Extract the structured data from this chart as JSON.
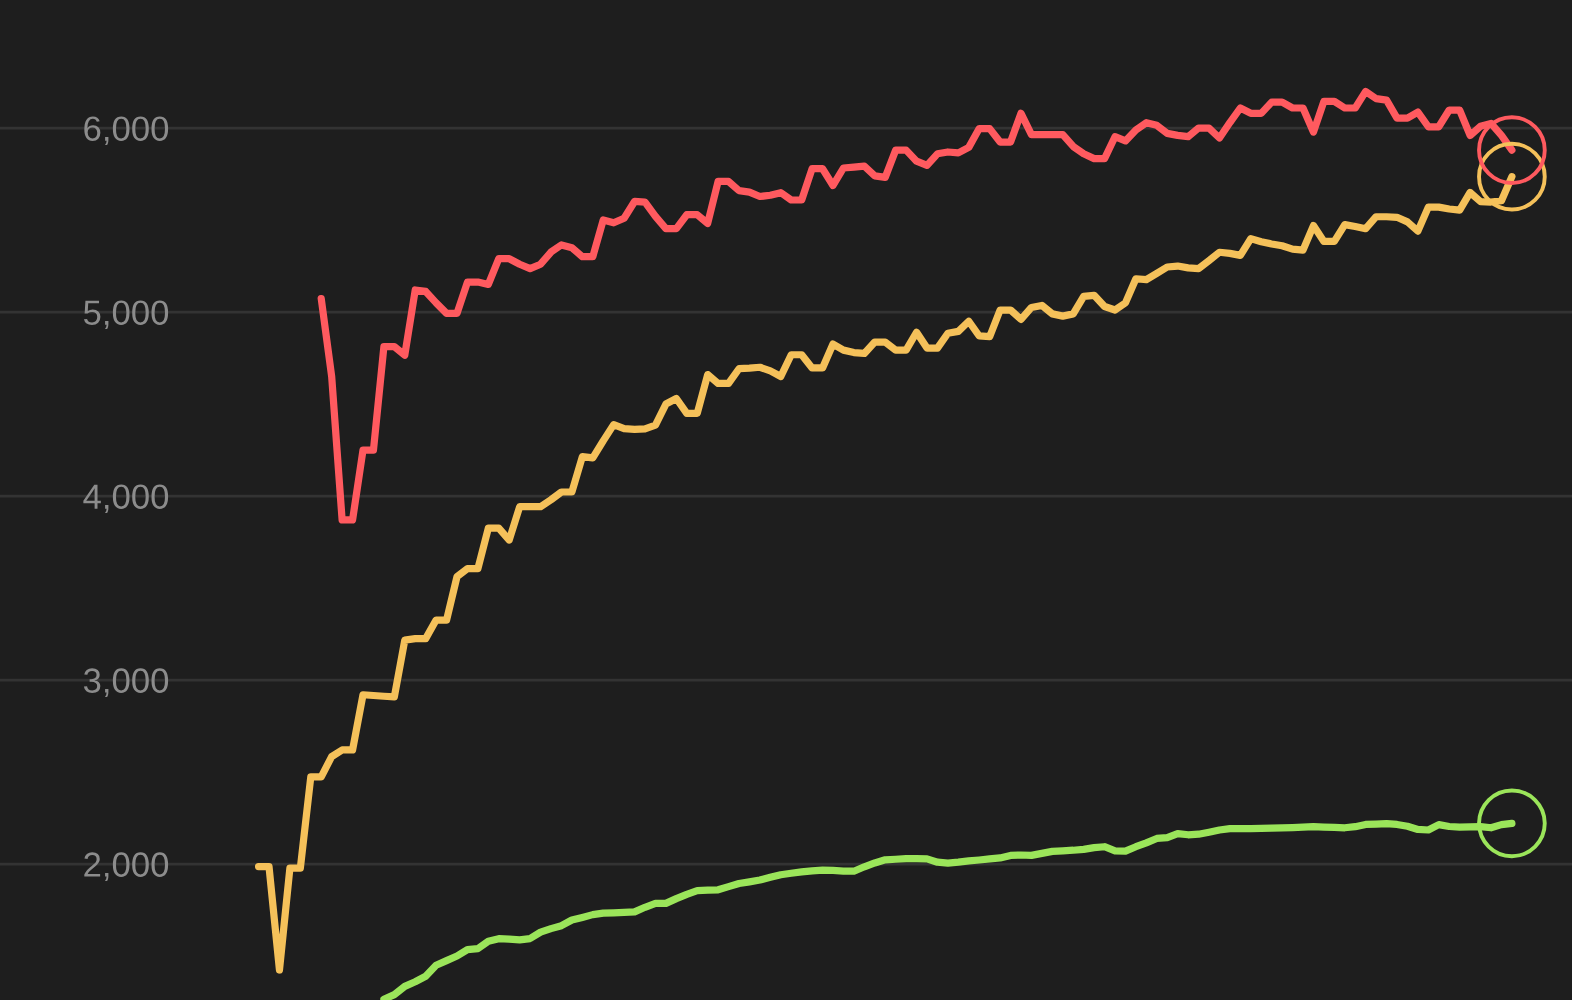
{
  "chart_data": {
    "type": "line",
    "categories": [
      null,
      null,
      null,
      null,
      null,
      null,
      null,
      null,
      null,
      null,
      null,
      null,
      null,
      null,
      null,
      null,
      null,
      null,
      null,
      null,
      null,
      null,
      null,
      null,
      null,
      null,
      null,
      null,
      null,
      null,
      null,
      null,
      null,
      null,
      null,
      null,
      null,
      null,
      null,
      null,
      null,
      null,
      null,
      null,
      null,
      null,
      null,
      null,
      null,
      null,
      null,
      null,
      null,
      null,
      null,
      null,
      null,
      null,
      null,
      null,
      null,
      null,
      null,
      null,
      null,
      null,
      null,
      null,
      null,
      null,
      null,
      null,
      null,
      null,
      null,
      null,
      null,
      null,
      null,
      null,
      null,
      null,
      null,
      null,
      null,
      null,
      null,
      null,
      null,
      null,
      null,
      null,
      null,
      null,
      null,
      null,
      null,
      null,
      null,
      null,
      null,
      null,
      null,
      null,
      null,
      null,
      null,
      null,
      null,
      null,
      null,
      null,
      null,
      null,
      null,
      null,
      null,
      null,
      null,
      null,
      null
    ],
    "ylim": [
      1261,
      6696
    ],
    "yticks": [
      {
        "value": 2000,
        "label": "2,000"
      },
      {
        "value": 3000,
        "label": "3,000"
      },
      {
        "value": 4000,
        "label": "4,000"
      },
      {
        "value": 5000,
        "label": "5,000"
      },
      {
        "value": 6000,
        "label": "6,000"
      }
    ],
    "tick_labels": "y",
    "grid": "y",
    "legend": false,
    "marker": "none",
    "line_style": "solid",
    "series": [
      {
        "color": "#f5c15a",
        "values": [
          1986,
          1986,
          1424,
          1978,
          1978,
          2474,
          2474,
          2584,
          2620,
          2620,
          2920,
          2916,
          2912,
          2908,
          3217,
          3225,
          3225,
          3326,
          3326,
          3562,
          3605,
          3605,
          3826,
          3826,
          3761,
          3942,
          3942,
          3942,
          3980,
          4022,
          4022,
          4214,
          4207,
          4300,
          4388,
          4366,
          4362,
          4365,
          4385,
          4500,
          4530,
          4449,
          4449,
          4660,
          4612,
          4612,
          4692,
          4695,
          4700,
          4680,
          4650,
          4768,
          4768,
          4696,
          4696,
          4826,
          4793,
          4780,
          4775,
          4837,
          4837,
          4793,
          4793,
          4890,
          4804,
          4804,
          4885,
          4895,
          4950,
          4870,
          4866,
          5011,
          5011,
          4960,
          5025,
          5036,
          4990,
          4978,
          4990,
          5085,
          5091,
          5030,
          5011,
          5050,
          5181,
          5176,
          5210,
          5245,
          5250,
          5240,
          5236,
          5280,
          5325,
          5319,
          5308,
          5399,
          5382,
          5370,
          5360,
          5342,
          5337,
          5470,
          5384,
          5384,
          5475,
          5465,
          5453,
          5518,
          5518,
          5515,
          5490,
          5440,
          5570,
          5570,
          5560,
          5554,
          5650,
          5600,
          5598,
          5605,
          5736
        ]
      },
      {
        "color": "#ff5a5f",
        "values": [
          null,
          null,
          null,
          null,
          null,
          null,
          5073,
          4650,
          3870,
          3870,
          4250,
          4250,
          4812,
          4812,
          4766,
          5120,
          5112,
          5050,
          4993,
          4993,
          5163,
          5163,
          5150,
          5290,
          5290,
          5260,
          5236,
          5260,
          5326,
          5365,
          5350,
          5301,
          5301,
          5500,
          5485,
          5510,
          5601,
          5598,
          5520,
          5453,
          5453,
          5529,
          5529,
          5482,
          5710,
          5710,
          5660,
          5652,
          5628,
          5635,
          5649,
          5609,
          5609,
          5779,
          5779,
          5688,
          5783,
          5788,
          5793,
          5740,
          5732,
          5880,
          5880,
          5820,
          5797,
          5860,
          5870,
          5865,
          5895,
          5997,
          5997,
          5924,
          5924,
          6080,
          5964,
          5964,
          5964,
          5964,
          5900,
          5860,
          5834,
          5834,
          5953,
          5930,
          5990,
          6029,
          6015,
          5971,
          5960,
          5953,
          6000,
          6000,
          5946,
          6030,
          6109,
          6080,
          6080,
          6141,
          6141,
          6109,
          6109,
          5978,
          6145,
          6145,
          6109,
          6109,
          6199,
          6160,
          6152,
          6054,
          6054,
          6087,
          6007,
          6007,
          6098,
          6098,
          5960,
          6010,
          6025,
          5960,
          5880
        ]
      },
      {
        "color": "#9be55a",
        "values": [
          null,
          null,
          null,
          null,
          null,
          null,
          null,
          null,
          null,
          null,
          null,
          null,
          1265,
          1290,
          1335,
          1360,
          1390,
          1450,
          1475,
          1500,
          1535,
          1540,
          1580,
          1594,
          1592,
          1588,
          1595,
          1630,
          1649,
          1665,
          1696,
          1710,
          1725,
          1733,
          1735,
          1737,
          1740,
          1765,
          1786,
          1786,
          1812,
          1835,
          1855,
          1858,
          1860,
          1877,
          1894,
          1903,
          1913,
          1928,
          1942,
          1950,
          1957,
          1963,
          1967,
          1965,
          1962,
          1961,
          1985,
          2006,
          2023,
          2026,
          2029,
          2029,
          2028,
          2010,
          2005,
          2010,
          2017,
          2022,
          2028,
          2033,
          2047,
          2049,
          2047,
          2058,
          2069,
          2072,
          2075,
          2080,
          2089,
          2094,
          2072,
          2070,
          2094,
          2115,
          2139,
          2143,
          2165,
          2159,
          2162,
          2173,
          2185,
          2192,
          2193,
          2193,
          2194,
          2195,
          2196,
          2198,
          2200,
          2203,
          2201,
          2199,
          2197,
          2203,
          2215,
          2217,
          2220,
          2215,
          2205,
          2188,
          2185,
          2214,
          2204,
          2201,
          2202,
          2203,
          2197,
          2214,
          2221
        ]
      }
    ]
  }
}
